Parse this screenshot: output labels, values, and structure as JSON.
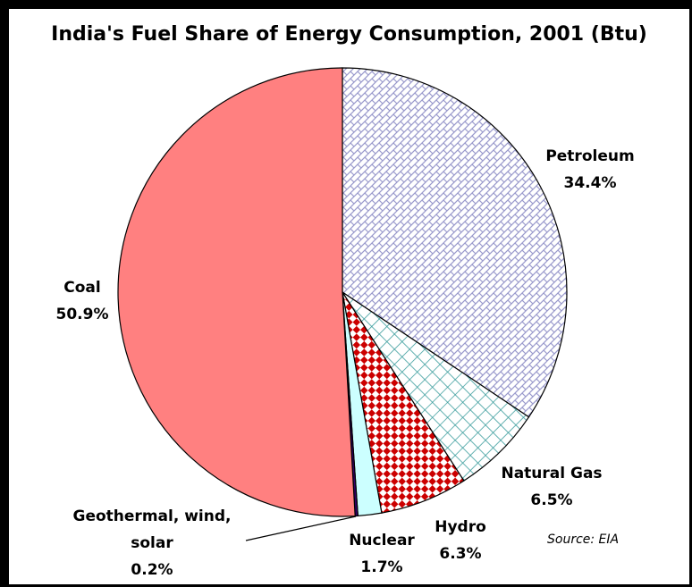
{
  "chart_data": {
    "type": "pie",
    "title": "India's Fuel Share of Energy Consumption, 2001 (Btu)",
    "categories": [
      "Petroleum",
      "Natural Gas",
      "Hydro",
      "Nuclear",
      "Geothermal, wind, solar",
      "Coal"
    ],
    "values": [
      34.4,
      6.5,
      6.3,
      1.7,
      0.2,
      50.9
    ],
    "value_labels": [
      "34.4%",
      "6.5%",
      "6.3%",
      "1.7%",
      "0.2%",
      "50.9%"
    ],
    "colors": [
      "#9999cc",
      "#339999",
      "#cc0000",
      "#ccffff",
      "#330066",
      "#ff8080"
    ],
    "source": "Source: EIA"
  }
}
